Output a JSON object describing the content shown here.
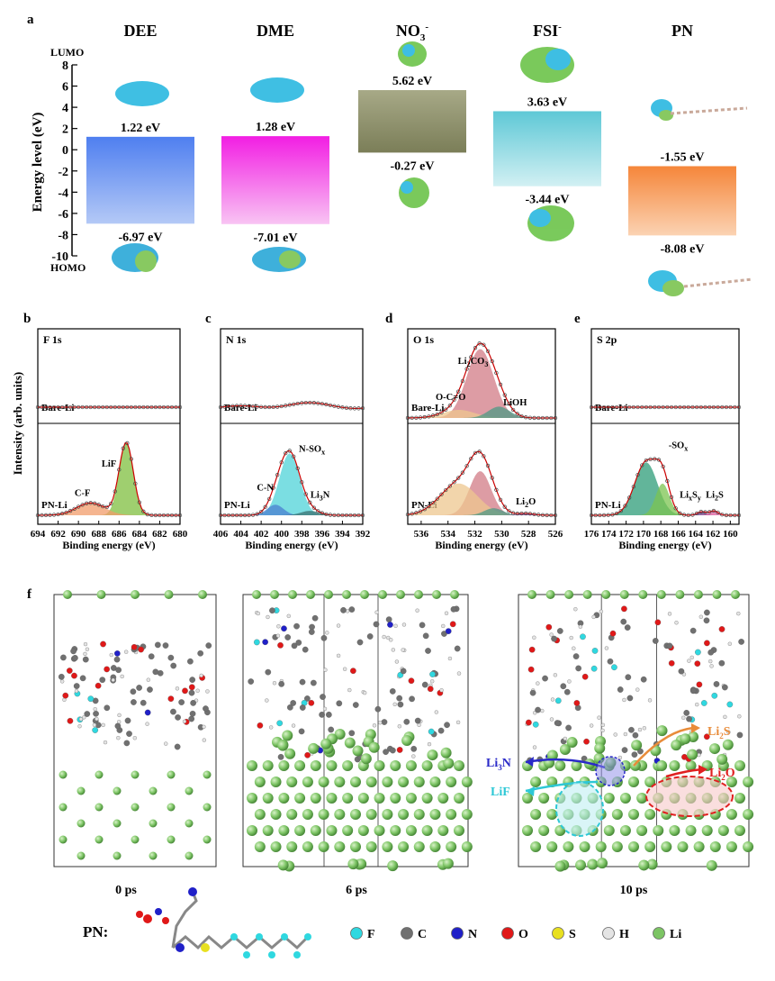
{
  "panel_letters": [
    "a",
    "b",
    "c",
    "d",
    "e",
    "f"
  ],
  "chart_data": [
    {
      "panel": "a",
      "type": "bar",
      "ylabel": "Energy level (eV)",
      "ylim": [
        -10,
        8
      ],
      "yticks": [
        8,
        6,
        4,
        2,
        0,
        -2,
        -4,
        -6,
        -8,
        -10
      ],
      "lumo_label": "LUMO",
      "homo_label": "HOMO",
      "categories": [
        {
          "name": "DEE",
          "sup": "",
          "lumo": 1.22,
          "homo": -6.97,
          "lumo_label": "1.22 eV",
          "homo_label": "-6.97 eV",
          "color_top": "#4f7ff0",
          "color_bottom": "#b4c9f6"
        },
        {
          "name": "DME",
          "sup": "",
          "lumo": 1.28,
          "homo": -7.01,
          "lumo_label": "1.28 eV",
          "homo_label": "-7.01 eV",
          "color_top": "#f21ee3",
          "color_bottom": "#f8c4f3"
        },
        {
          "name": "NO",
          "sup": "3",
          "sup2": "-",
          "lumo": 5.62,
          "homo": -0.27,
          "lumo_label": "5.62 eV",
          "homo_label": "-0.27 eV",
          "color_top": "#a7a987",
          "color_bottom": "#7b7e58"
        },
        {
          "name": "FSI",
          "sup": "-",
          "lumo": 3.63,
          "homo": -3.44,
          "lumo_label": "3.63 eV",
          "homo_label": "-3.44 eV",
          "color_top": "#5ec8d6",
          "color_bottom": "#d2f0f3"
        },
        {
          "name": "PN",
          "sup": "",
          "lumo": -1.55,
          "homo": -8.08,
          "lumo_label": "-1.55 eV",
          "homo_label": "-8.08 eV",
          "color_top": "#f5863a",
          "color_bottom": "#fbd3b3"
        }
      ]
    },
    {
      "panel": "b",
      "type": "line",
      "title": "F 1s",
      "xlabel": "Binding energy (eV)",
      "ylabel": "Intensity (arb. units)",
      "xlim": [
        694,
        680
      ],
      "xticks": [
        694,
        692,
        690,
        688,
        686,
        684,
        682,
        680
      ],
      "top_label": "Bare-Li",
      "bottom_label": "PN-Li",
      "peaks": [
        {
          "name": "LiF",
          "center": 685.3,
          "color": "#7fbf3f"
        },
        {
          "name": "C-F",
          "center": 688.8,
          "color": "#f29c6b"
        }
      ]
    },
    {
      "panel": "c",
      "type": "line",
      "title": "N 1s",
      "xlabel": "Binding energy (eV)",
      "xlim": [
        406,
        392
      ],
      "xticks": [
        406,
        404,
        402,
        400,
        398,
        396,
        394,
        392
      ],
      "top_label": "Bare-Li",
      "bottom_label": "PN-Li",
      "peaks": [
        {
          "name": "N-SO",
          "sub": "x",
          "center": 399.2,
          "color": "#4fd3d8"
        },
        {
          "name": "C-N",
          "center": 400.6,
          "color": "#4a7fd0"
        },
        {
          "name": "Li",
          "sub": "3",
          "tail": "N",
          "center": 397.2,
          "color": "#3a7070"
        }
      ]
    },
    {
      "panel": "d",
      "type": "line",
      "title": "O 1s",
      "xlabel": "Binding energy (eV)",
      "xlim": [
        537,
        526
      ],
      "xticks": [
        536,
        534,
        532,
        530,
        528,
        526
      ],
      "top_label": "Bare-Li",
      "bottom_label": "PN-Li",
      "peaks": [
        {
          "name": "Li",
          "sub": "2",
          "tail": "CO",
          "sub2": "3",
          "center": 531.6,
          "color": "#d27b86"
        },
        {
          "name": "O-C=O",
          "center": 533.2,
          "color": "#eec78f"
        },
        {
          "name": "LiOH",
          "center": 530.6,
          "color": "#4e9a86"
        },
        {
          "name": "Li",
          "sub": "2",
          "tail": "O",
          "center": 528.2,
          "color": "#7b4aa0"
        }
      ]
    },
    {
      "panel": "e",
      "type": "line",
      "title": "S 2p",
      "xlabel": "Binding energy (eV)",
      "xlim": [
        176,
        159
      ],
      "xticks": [
        176,
        174,
        172,
        170,
        168,
        166,
        164,
        162,
        160
      ],
      "top_label": "Bare-Li",
      "bottom_label": "PN-Li",
      "peaks": [
        {
          "name": "-SO",
          "sub": "x",
          "center": 169.7,
          "color": "#2e9c78"
        },
        {
          "name": "Li",
          "sub": "x",
          "tail": "S",
          "sub2": "y",
          "center": 163.3,
          "color": "#6b3b8a"
        },
        {
          "name": "Li",
          "sub": "2",
          "tail": "S",
          "center": 161.9,
          "color": "#e060a0"
        }
      ]
    }
  ],
  "panel_f": {
    "snapshots": [
      {
        "label": "0 ps"
      },
      {
        "label": "6 ps"
      },
      {
        "label": "10 ps"
      }
    ],
    "annotations": [
      {
        "name": "Li",
        "sub": "3",
        "tail": "N",
        "color": "#2a2ac8"
      },
      {
        "name": "LiF",
        "sub": "",
        "tail": "",
        "color": "#2ec8d6"
      },
      {
        "name": "Li",
        "sub": "2",
        "tail": "S",
        "color": "#e88c3a"
      },
      {
        "name": "Li",
        "sub": "2",
        "tail": "O",
        "color": "#e02020"
      }
    ],
    "pn_label": "PN:",
    "legend": [
      {
        "symbol": "F",
        "color": "#2fd8e0"
      },
      {
        "symbol": "C",
        "color": "#707070"
      },
      {
        "symbol": "N",
        "color": "#2020c8"
      },
      {
        "symbol": "O",
        "color": "#e01818"
      },
      {
        "symbol": "S",
        "color": "#e8e020"
      },
      {
        "symbol": "H",
        "color": "#e4e4e4"
      },
      {
        "symbol": "Li",
        "color": "#7cc464"
      }
    ]
  }
}
